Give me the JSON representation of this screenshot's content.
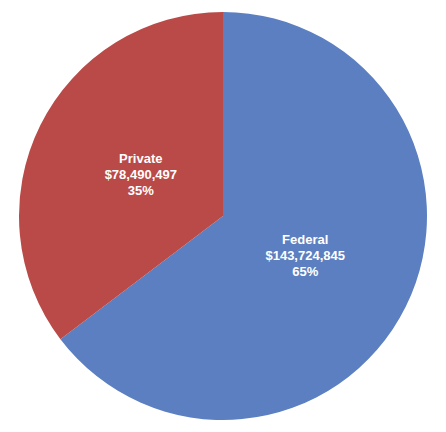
{
  "chart_data": {
    "type": "pie",
    "categories": [
      "Federal",
      "Private"
    ],
    "values": [
      143724845,
      78490497
    ],
    "value_labels": [
      "$143,724,845",
      "$78,490,497"
    ],
    "percentages": [
      65,
      35
    ],
    "percentage_labels": [
      "65%",
      "35%"
    ],
    "colors": [
      "#5B7FC0",
      "#B94A48"
    ]
  }
}
